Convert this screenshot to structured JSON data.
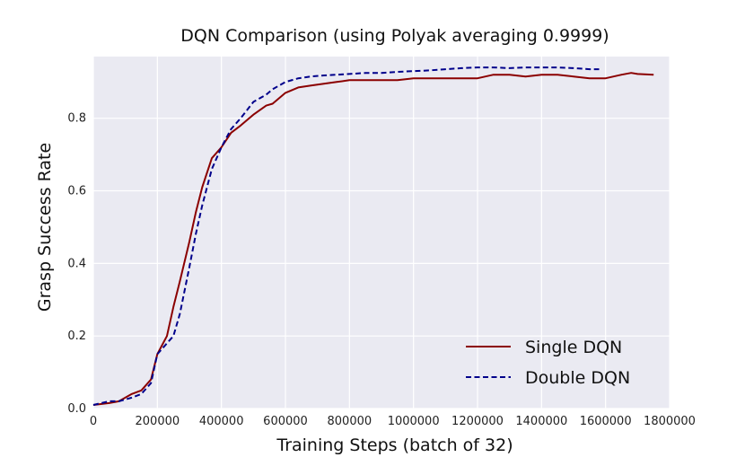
{
  "chart_data": {
    "type": "line",
    "title": "DQN Comparison (using Polyak averaging 0.9999)",
    "xlabel": "Training Steps (batch of 32)",
    "ylabel": "Grasp Success Rate",
    "xlim": [
      0,
      1800000
    ],
    "ylim": [
      0.0,
      0.97
    ],
    "xticks": [
      0,
      200000,
      400000,
      600000,
      800000,
      1000000,
      1200000,
      1400000,
      1600000,
      1800000
    ],
    "xtick_labels": [
      "0",
      "200000",
      "400000",
      "600000",
      "800000",
      "1000000",
      "1200000",
      "1400000",
      "1600000",
      "1800000"
    ],
    "yticks": [
      0.0,
      0.2,
      0.4,
      0.6,
      0.8
    ],
    "ytick_labels": [
      "0.0",
      "0.2",
      "0.4",
      "0.6",
      "0.8"
    ],
    "grid": true,
    "legend_position": "bottom-right",
    "series": [
      {
        "name": "Single DQN",
        "color": "#8b0000",
        "style": "solid",
        "x": [
          0,
          50000,
          80000,
          120000,
          150000,
          180000,
          200000,
          230000,
          250000,
          270000,
          300000,
          320000,
          340000,
          370000,
          400000,
          430000,
          460000,
          500000,
          540000,
          560000,
          600000,
          640000,
          680000,
          720000,
          760000,
          800000,
          850000,
          900000,
          950000,
          1000000,
          1050000,
          1100000,
          1150000,
          1200000,
          1250000,
          1300000,
          1350000,
          1400000,
          1450000,
          1500000,
          1550000,
          1600000,
          1650000,
          1680000,
          1700000,
          1750000
        ],
        "y": [
          0.01,
          0.015,
          0.02,
          0.04,
          0.05,
          0.08,
          0.15,
          0.2,
          0.28,
          0.35,
          0.46,
          0.54,
          0.61,
          0.69,
          0.72,
          0.76,
          0.78,
          0.81,
          0.835,
          0.84,
          0.87,
          0.885,
          0.89,
          0.895,
          0.9,
          0.905,
          0.905,
          0.905,
          0.905,
          0.91,
          0.91,
          0.91,
          0.91,
          0.91,
          0.92,
          0.92,
          0.915,
          0.92,
          0.92,
          0.915,
          0.91,
          0.91,
          0.92,
          0.925,
          0.922,
          0.92
        ]
      },
      {
        "name": "Double DQN",
        "color": "#00008b",
        "style": "dashed",
        "x": [
          0,
          50000,
          80000,
          120000,
          150000,
          180000,
          200000,
          230000,
          250000,
          270000,
          300000,
          320000,
          340000,
          370000,
          400000,
          430000,
          460000,
          500000,
          540000,
          560000,
          600000,
          640000,
          680000,
          720000,
          760000,
          800000,
          850000,
          900000,
          950000,
          1000000,
          1050000,
          1100000,
          1150000,
          1200000,
          1250000,
          1300000,
          1350000,
          1400000,
          1450000,
          1500000,
          1550000,
          1580000
        ],
        "y": [
          0.01,
          0.02,
          0.02,
          0.03,
          0.04,
          0.07,
          0.15,
          0.18,
          0.2,
          0.26,
          0.39,
          0.48,
          0.56,
          0.66,
          0.72,
          0.77,
          0.8,
          0.845,
          0.865,
          0.88,
          0.9,
          0.91,
          0.915,
          0.918,
          0.92,
          0.922,
          0.925,
          0.925,
          0.928,
          0.93,
          0.932,
          0.935,
          0.938,
          0.94,
          0.94,
          0.938,
          0.94,
          0.94,
          0.94,
          0.938,
          0.935,
          0.935
        ]
      }
    ]
  }
}
